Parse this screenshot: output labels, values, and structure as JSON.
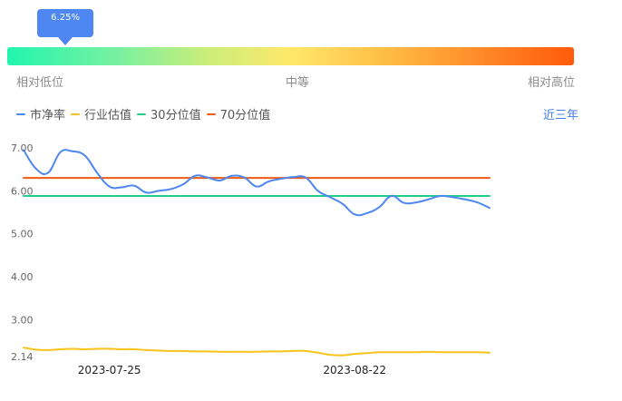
{
  "percentile": {
    "value_label": "6.25%",
    "value": 0.0625,
    "low_label": "相对低位",
    "mid_label": "中等",
    "high_label": "相对高位"
  },
  "legend": {
    "items": [
      {
        "label": "市净率",
        "color": "#4e86f2"
      },
      {
        "label": "行业估值",
        "color": "#f7c31a"
      },
      {
        "label": "30分位值",
        "color": "#22cf88"
      },
      {
        "label": "70分位值",
        "color": "#ee5a12"
      }
    ],
    "range_label": "近三年"
  },
  "chart_data": {
    "type": "line",
    "ylim": [
      2.14,
      7.0
    ],
    "y_ticks": [
      "7.00",
      "6.00",
      "5.00",
      "4.00",
      "3.00",
      "2.14"
    ],
    "x_tick_labels": [
      "2023-07-25",
      "2023-08-22"
    ],
    "x_tick_index": [
      7,
      27
    ],
    "series": [
      {
        "name": "市净率",
        "color": "#4e86f2",
        "values": [
          6.95,
          6.52,
          6.42,
          6.9,
          6.92,
          6.82,
          6.42,
          6.1,
          6.08,
          6.12,
          5.96,
          6.0,
          6.04,
          6.15,
          6.35,
          6.31,
          6.24,
          6.35,
          6.31,
          6.1,
          6.22,
          6.28,
          6.32,
          6.31,
          6.0,
          5.85,
          5.7,
          5.45,
          5.48,
          5.62,
          5.88,
          5.72,
          5.73,
          5.8,
          5.88,
          5.85,
          5.8,
          5.73,
          5.6
        ]
      },
      {
        "name": "行业估值",
        "color": "#f7c31a",
        "values": [
          2.35,
          2.3,
          2.29,
          2.31,
          2.32,
          2.31,
          2.32,
          2.32,
          2.31,
          2.31,
          2.29,
          2.28,
          2.27,
          2.27,
          2.26,
          2.26,
          2.25,
          2.25,
          2.25,
          2.25,
          2.26,
          2.26,
          2.27,
          2.27,
          2.23,
          2.18,
          2.17,
          2.2,
          2.22,
          2.24,
          2.24,
          2.24,
          2.24,
          2.25,
          2.24,
          2.24,
          2.24,
          2.24,
          2.23
        ]
      },
      {
        "name": "30分位值",
        "color": "#22cf88",
        "values": [
          5.88,
          5.88
        ]
      },
      {
        "name": "70分位值",
        "color": "#ee5a12",
        "values": [
          6.3,
          6.3
        ]
      }
    ]
  }
}
